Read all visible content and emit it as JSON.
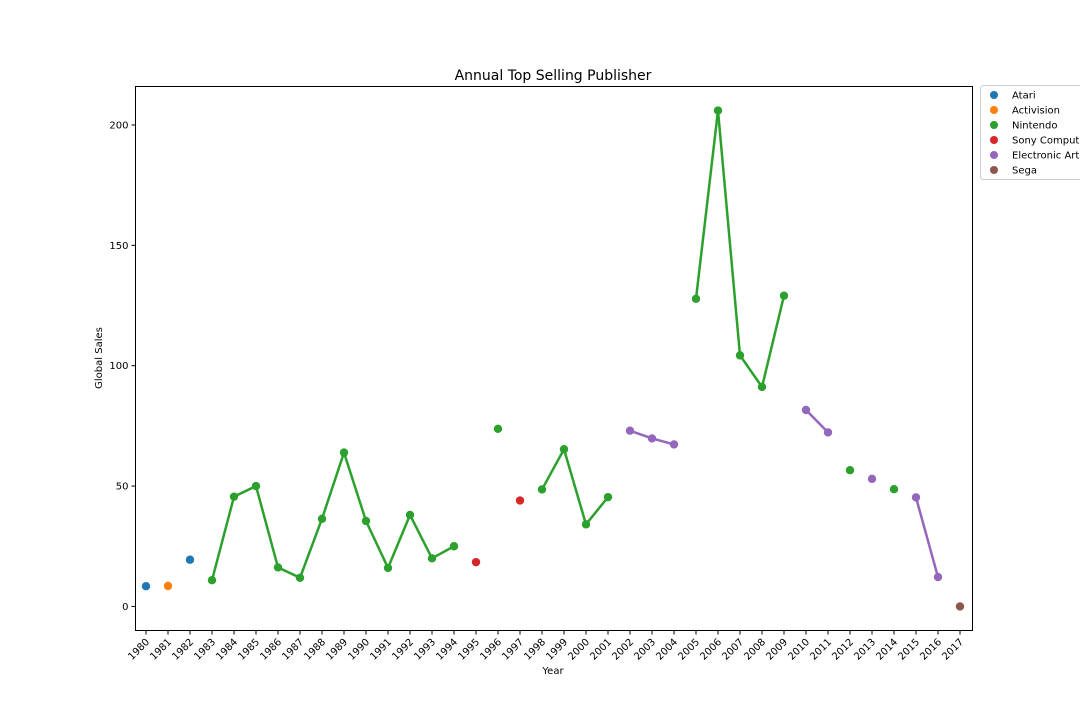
{
  "chart_data": {
    "type": "line",
    "title": "Annual Top Selling Publisher",
    "xlabel": "Year",
    "ylabel": "Global Sales",
    "ylim": [
      -10,
      216
    ],
    "yticks": [
      0,
      50,
      100,
      150,
      200
    ],
    "categories": [
      "1980",
      "1981",
      "1982",
      "1983",
      "1984",
      "1985",
      "1986",
      "1987",
      "1988",
      "1989",
      "1990",
      "1991",
      "1992",
      "1993",
      "1994",
      "1995",
      "1996",
      "1997",
      "1998",
      "1999",
      "2000",
      "2001",
      "2002",
      "2003",
      "2004",
      "2005",
      "2006",
      "2007",
      "2008",
      "2009",
      "2010",
      "2011",
      "2012",
      "2013",
      "2014",
      "2015",
      "2016",
      "2017"
    ],
    "grid": false,
    "legend": "outside-right",
    "series": [
      {
        "name": "Atari",
        "color": "#1f77b4",
        "points": [
          {
            "year": "1980",
            "value": 8.4
          },
          {
            "year": "1982",
            "value": 19.4
          }
        ]
      },
      {
        "name": "Activision",
        "color": "#ff7f0e",
        "points": [
          {
            "year": "1981",
            "value": 8.5
          }
        ]
      },
      {
        "name": "Nintendo",
        "color": "#2ca02c",
        "points": [
          {
            "year": "1983",
            "value": 10.9
          },
          {
            "year": "1984",
            "value": 45.6
          },
          {
            "year": "1985",
            "value": 50.0
          },
          {
            "year": "1986",
            "value": 16.2
          },
          {
            "year": "1987",
            "value": 11.9
          },
          {
            "year": "1988",
            "value": 36.4
          },
          {
            "year": "1989",
            "value": 63.9
          },
          {
            "year": "1990",
            "value": 35.5
          },
          {
            "year": "1991",
            "value": 16.0
          },
          {
            "year": "1992",
            "value": 38.0
          },
          {
            "year": "1993",
            "value": 20.0
          },
          {
            "year": "1994",
            "value": 25.0
          },
          {
            "year": "1996",
            "value": 73.8
          },
          {
            "year": "1998",
            "value": 48.6
          },
          {
            "year": "1999",
            "value": 65.3
          },
          {
            "year": "2000",
            "value": 34.1
          },
          {
            "year": "2001",
            "value": 45.4
          },
          {
            "year": "2005",
            "value": 127.8
          },
          {
            "year": "2006",
            "value": 206.0
          },
          {
            "year": "2007",
            "value": 104.3
          },
          {
            "year": "2008",
            "value": 91.2
          },
          {
            "year": "2009",
            "value": 129.1
          },
          {
            "year": "2012",
            "value": 56.6
          },
          {
            "year": "2014",
            "value": 48.7
          }
        ]
      },
      {
        "name": "Sony Computer Entertainment",
        "color": "#d62728",
        "points": [
          {
            "year": "1995",
            "value": 18.4
          },
          {
            "year": "1997",
            "value": 44.0
          }
        ]
      },
      {
        "name": "Electronic Arts",
        "color": "#9467bd",
        "points": [
          {
            "year": "2002",
            "value": 73.0
          },
          {
            "year": "2003",
            "value": 69.8
          },
          {
            "year": "2004",
            "value": 67.3
          },
          {
            "year": "2010",
            "value": 81.6
          },
          {
            "year": "2011",
            "value": 72.3
          },
          {
            "year": "2013",
            "value": 53.0
          },
          {
            "year": "2015",
            "value": 45.3
          },
          {
            "year": "2016",
            "value": 12.2
          }
        ]
      },
      {
        "name": "Sega",
        "color": "#8c564b",
        "points": [
          {
            "year": "2017",
            "value": 0.0
          }
        ]
      }
    ]
  }
}
